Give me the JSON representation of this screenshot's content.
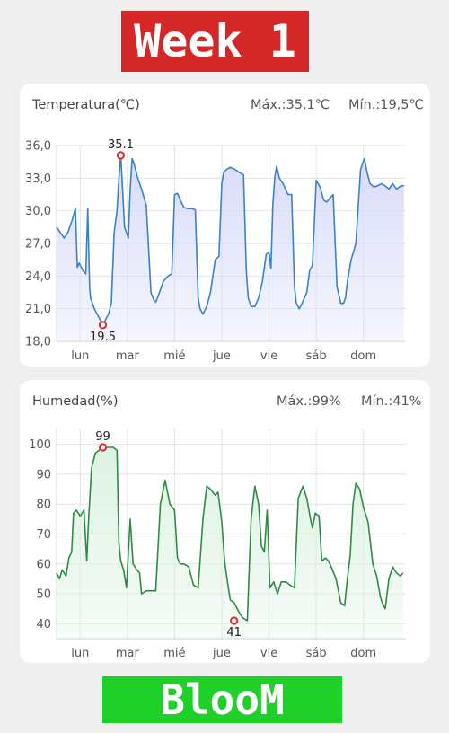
{
  "header": {
    "title": "Week 1"
  },
  "footer": {
    "title": "BlooM"
  },
  "temperature": {
    "title": "Temperatura(℃)",
    "max_text": "Máx.:35,1℃",
    "min_text": "Mín.:19,5℃",
    "line_color": "#3b82c4",
    "fill_color": "#d9dcfa",
    "marker_color": "#d62b2b",
    "max_label": "35.1",
    "min_label": "19.5"
  },
  "humidity": {
    "title": "Humedad(%)",
    "max_text": "Máx.:99%",
    "min_text": "Mín.:41%",
    "line_color": "#2e8b44",
    "fill_color": "#dcf2e2",
    "marker_color": "#d62b2b",
    "max_label": "99",
    "min_label": "41"
  },
  "chart_data": [
    {
      "type": "area",
      "title": "Temperatura(℃)",
      "x_categories": [
        "lun",
        "mar",
        "mié",
        "jue",
        "vie",
        "sáb",
        "dom"
      ],
      "x_range": [
        0,
        7.4
      ],
      "ylim": [
        18.0,
        36.0
      ],
      "y_ticks": [
        "18,0",
        "21,0",
        "24,0",
        "27,0",
        "30,0",
        "33,0",
        "36,0"
      ],
      "grid": true,
      "x": [
        0,
        0.08,
        0.16,
        0.24,
        0.32,
        0.4,
        0.44,
        0.48,
        0.5,
        0.56,
        0.62,
        0.66,
        0.7,
        0.72,
        0.76,
        0.8,
        0.86,
        0.92,
        0.98,
        1.04,
        1.1,
        1.16,
        1.22,
        1.28,
        1.32,
        1.36,
        1.44,
        1.52,
        1.56,
        1.6,
        1.62,
        1.66,
        1.72,
        1.8,
        1.9,
        2.0,
        2.06,
        2.1,
        2.18,
        2.26,
        2.36,
        2.44,
        2.5,
        2.56,
        2.62,
        2.7,
        2.78,
        2.86,
        2.94,
        3.0,
        3.04,
        3.1,
        3.18,
        3.26,
        3.36,
        3.44,
        3.5,
        3.54,
        3.6,
        3.68,
        3.78,
        3.88,
        3.96,
        4.02,
        4.06,
        4.12,
        4.2,
        4.28,
        4.36,
        4.44,
        4.5,
        4.54,
        4.58,
        4.62,
        4.66,
        4.72,
        4.8,
        4.9,
        4.98,
        5.04,
        5.08,
        5.14,
        5.2,
        5.3,
        5.36,
        5.42,
        5.5,
        5.58,
        5.66,
        5.72,
        5.78,
        5.86,
        5.94,
        6.02,
        6.08,
        6.12,
        6.16,
        6.24,
        6.34,
        6.44,
        6.52,
        6.58,
        6.64,
        6.72,
        6.8,
        6.88,
        6.96,
        7.04,
        7.12,
        7.2,
        7.3,
        7.36
      ],
      "y": [
        28.5,
        28.0,
        27.5,
        28.0,
        29.0,
        30.2,
        24.8,
        25.2,
        25.0,
        24.5,
        24.2,
        30.2,
        23.0,
        22.0,
        21.5,
        21.0,
        20.5,
        20.0,
        19.5,
        20.0,
        20.5,
        21.5,
        28.0,
        30.0,
        33.0,
        35.1,
        28.5,
        27.5,
        32.0,
        34.8,
        34.6,
        34.0,
        33.0,
        32.0,
        30.5,
        22.5,
        21.8,
        21.6,
        22.5,
        23.5,
        24.0,
        24.2,
        31.5,
        31.6,
        31.0,
        30.3,
        30.2,
        30.2,
        30.1,
        22.0,
        21.0,
        20.5,
        21.2,
        22.5,
        25.5,
        25.8,
        32.5,
        33.5,
        33.8,
        34.0,
        33.8,
        33.5,
        33.3,
        24.5,
        22.0,
        21.2,
        21.2,
        22.0,
        23.5,
        26.0,
        26.2,
        24.7,
        30.5,
        33.0,
        34.1,
        33.0,
        32.5,
        31.5,
        31.5,
        23.0,
        21.5,
        21.0,
        21.5,
        22.5,
        24.5,
        25.0,
        32.8,
        32.2,
        31.0,
        30.8,
        31.1,
        31.5,
        23.0,
        21.5,
        21.5,
        22.0,
        23.5,
        25.5,
        27.0,
        33.8,
        34.8,
        33.5,
        32.5,
        32.2,
        32.3,
        32.5,
        32.3,
        32.0,
        32.5,
        32.0,
        32.3,
        32.3
      ],
      "max_point": {
        "x": 1.36,
        "y": 35.1,
        "label": "35.1"
      },
      "min_point": {
        "x": 0.98,
        "y": 19.5,
        "label": "19.5"
      }
    },
    {
      "type": "area",
      "title": "Humedad(%)",
      "x_categories": [
        "lun",
        "mar",
        "mié",
        "jue",
        "vie",
        "sáb",
        "dom"
      ],
      "x_range": [
        0,
        7.4
      ],
      "ylim": [
        35,
        105
      ],
      "y_ticks": [
        "40",
        "50",
        "60",
        "70",
        "80",
        "90",
        "100"
      ],
      "grid": true,
      "x": [
        0,
        0.06,
        0.12,
        0.2,
        0.26,
        0.32,
        0.36,
        0.42,
        0.5,
        0.58,
        0.64,
        0.68,
        0.74,
        0.82,
        0.9,
        0.98,
        1.04,
        1.12,
        1.2,
        1.28,
        1.32,
        1.36,
        1.42,
        1.48,
        1.56,
        1.62,
        1.7,
        1.76,
        1.8,
        1.9,
        2.0,
        2.1,
        2.2,
        2.3,
        2.4,
        2.5,
        2.56,
        2.62,
        2.7,
        2.8,
        2.9,
        3.0,
        3.1,
        3.18,
        3.26,
        3.36,
        3.42,
        3.5,
        3.56,
        3.62,
        3.68,
        3.76,
        3.86,
        3.94,
        4.04,
        4.12,
        4.2,
        4.28,
        4.34,
        4.4,
        4.46,
        4.52,
        4.6,
        4.68,
        4.76,
        4.86,
        4.94,
        5.04,
        5.12,
        5.22,
        5.3,
        5.38,
        5.42,
        5.48,
        5.56,
        5.62,
        5.7,
        5.76,
        5.82,
        5.92,
        6.02,
        6.1,
        6.16,
        6.22,
        6.28,
        6.34,
        6.42,
        6.5,
        6.6,
        6.7,
        6.78,
        6.86,
        6.9,
        6.96,
        7.04,
        7.12,
        7.2,
        7.28,
        7.34
      ],
      "y": [
        57,
        55,
        58,
        56,
        62,
        64,
        77,
        78,
        76,
        78,
        61,
        75,
        92,
        97,
        98,
        99,
        99,
        99,
        99,
        98,
        67,
        61,
        58,
        52,
        75,
        60,
        58,
        57,
        50,
        51,
        51,
        51,
        80,
        88,
        80,
        78,
        62,
        60,
        60,
        59,
        53,
        52,
        75,
        86,
        85,
        83,
        84,
        74,
        61,
        54,
        48,
        47,
        44,
        42,
        41,
        75,
        86,
        80,
        66,
        64,
        78,
        52,
        54,
        50,
        54,
        54,
        53,
        52,
        82,
        86,
        82,
        75,
        72,
        77,
        76,
        61,
        62,
        61,
        59,
        55,
        47,
        46,
        55,
        63,
        80,
        87,
        85,
        79,
        74,
        60,
        56,
        49,
        47,
        45,
        55,
        59,
        57,
        56,
        57
      ],
      "max_point": {
        "x": 0.98,
        "y": 99,
        "label": "99"
      },
      "min_point": {
        "x": 3.76,
        "y": 41,
        "label": "41"
      }
    }
  ]
}
